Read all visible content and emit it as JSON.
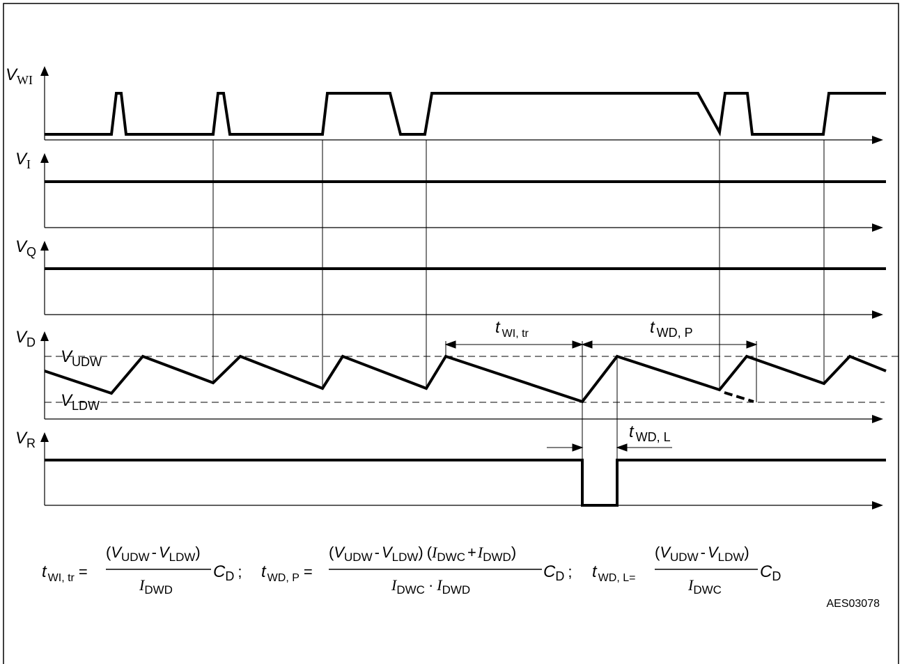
{
  "signals": [
    {
      "id": "vwi",
      "symbol": "V",
      "sub": "WI",
      "sub_serif": true
    },
    {
      "id": "vi",
      "symbol": "V",
      "sub": "I",
      "sub_serif": true
    },
    {
      "id": "vq",
      "symbol": "V",
      "sub": "Q",
      "sub_serif": false
    },
    {
      "id": "vd",
      "symbol": "V",
      "sub": "D",
      "sub_serif": false
    },
    {
      "id": "vr",
      "symbol": "V",
      "sub": "R",
      "sub_serif": false
    }
  ],
  "thresholds": {
    "upper": {
      "symbol": "V",
      "sub": "UDW"
    },
    "lower": {
      "symbol": "V",
      "sub": "LDW"
    }
  },
  "timing": {
    "t_wi_tr": {
      "symbol": "t",
      "sub": "WI, tr"
    },
    "t_wd_p": {
      "symbol": "t",
      "sub": "WD, P"
    },
    "t_wd_l": {
      "symbol": "t",
      "sub": "WD, L"
    }
  },
  "formulas": [
    {
      "lhs": "t",
      "lhs_sub": "WI, tr",
      "eq": "=",
      "num": "(V UDW - V LDW)",
      "den": "I DWD",
      "factor": "C",
      "factor_sub": "D",
      "sep": ";"
    },
    {
      "lhs": "t",
      "lhs_sub": "WD, P",
      "eq": "=",
      "num": "(V UDW - V LDW) (I DWC + I DWD)",
      "den": "I DWC · I DWD",
      "factor": "C",
      "factor_sub": "D",
      "sep": ";"
    },
    {
      "lhs": "t",
      "lhs_sub": "WD, L=",
      "eq": "",
      "num": "(V UDW - V LDW)",
      "den": "I DWC",
      "factor": "C",
      "factor_sub": "D",
      "sep": ""
    }
  ],
  "text": {
    "minus": "-",
    "plus": "+",
    "dot": "·",
    "open": "(",
    "close": ")",
    "V": "V",
    "I": "I",
    "UDW": "UDW",
    "LDW": "LDW",
    "DWD": "DWD",
    "DWC": "DWC"
  },
  "figure_id": "AES03078"
}
